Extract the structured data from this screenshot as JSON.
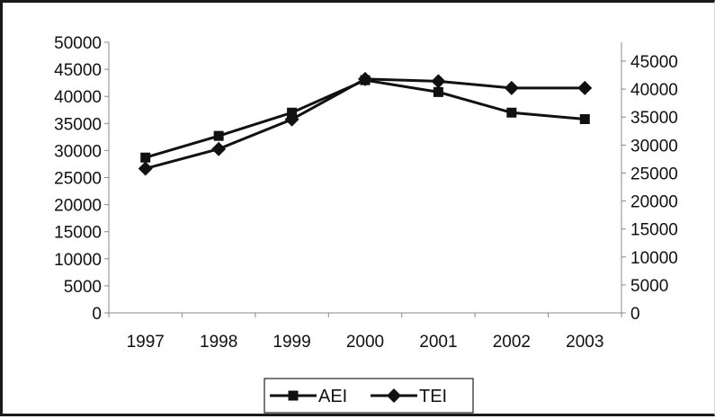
{
  "chart_data": {
    "type": "line",
    "categories": [
      "1997",
      "1998",
      "1999",
      "2000",
      "2001",
      "2002",
      "2003"
    ],
    "y_left": {
      "ticks": [
        "0",
        "5000",
        "10000",
        "15000",
        "20000",
        "25000",
        "30000",
        "35000",
        "40000",
        "45000",
        "50000"
      ],
      "ylim": [
        0,
        50000
      ]
    },
    "y_right": {
      "ticks": [
        "0",
        "5000",
        "10000",
        "15000",
        "20000",
        "25000",
        "30000",
        "35000",
        "40000",
        "45000"
      ],
      "ylim": [
        0,
        45000
      ]
    },
    "series": [
      {
        "name": "AEI",
        "marker": "square",
        "axis": "left",
        "values": [
          28700,
          32700,
          37000,
          43000,
          40800,
          37000,
          35800
        ]
      },
      {
        "name": "TEI",
        "marker": "diamond",
        "axis": "right",
        "values": [
          25800,
          29300,
          34600,
          41800,
          41400,
          40200,
          40200
        ]
      }
    ],
    "legend": "bottom",
    "grid": false,
    "colors": {
      "line": "#111111",
      "frame": "#1a1a1a",
      "axis": "#888888"
    }
  }
}
